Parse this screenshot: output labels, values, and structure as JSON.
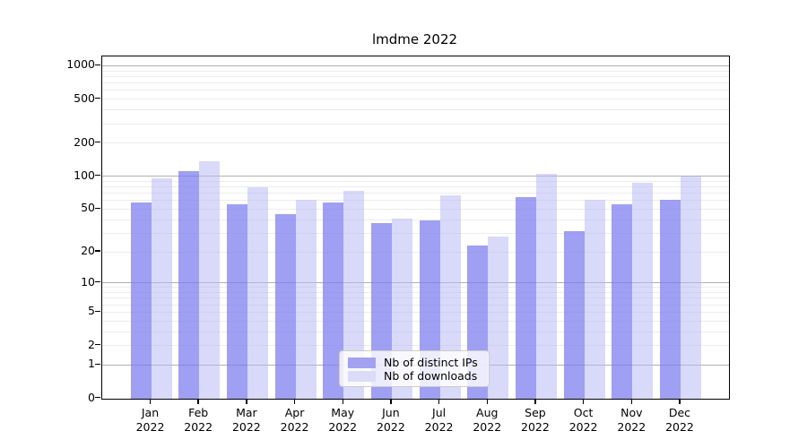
{
  "title": "lmdme 2022",
  "legend": {
    "items": [
      {
        "label": "Nb of distinct IPs",
        "color": "rgba(122,122,238,0.72)",
        "swatch": "#a2a2f3"
      },
      {
        "label": "Nb of downloads",
        "color": "rgba(182,182,246,0.52)",
        "swatch": "#dcdcf9"
      }
    ]
  },
  "axis": {
    "x_year": "2022",
    "y_tick_values": [
      0,
      1,
      2,
      5,
      10,
      20,
      50,
      100,
      200,
      500,
      1000
    ],
    "y_tick_labels": [
      "0",
      "1",
      "2",
      "5",
      "10",
      "20",
      "50",
      "100",
      "200",
      "500",
      "1000"
    ],
    "major_gridlines": [
      1,
      10,
      100,
      1000
    ],
    "minor_gridlines": [
      2,
      3,
      4,
      5,
      6,
      7,
      8,
      9,
      20,
      30,
      40,
      50,
      60,
      70,
      80,
      90,
      200,
      300,
      400,
      500,
      600,
      700,
      800,
      900
    ],
    "grid": "on",
    "legend_position": "lower center"
  },
  "chart_data": {
    "type": "bar",
    "title": "lmdme 2022",
    "scale": "log10(1+x)",
    "categories": [
      "Jan",
      "Feb",
      "Mar",
      "Apr",
      "May",
      "Jun",
      "Jul",
      "Aug",
      "Sep",
      "Oct",
      "Nov",
      "Dec"
    ],
    "x_year": "2022",
    "series": [
      {
        "name": "Nb of distinct IPs",
        "values": [
          58,
          112,
          55,
          45,
          57,
          37,
          39,
          23,
          65,
          31,
          55,
          61
        ]
      },
      {
        "name": "Nb of downloads",
        "values": [
          95,
          136,
          80,
          61,
          74,
          41,
          67,
          28,
          105,
          61,
          87,
          99
        ]
      }
    ],
    "xlabel": "",
    "ylabel": "",
    "ylim": [
      0,
      1216
    ]
  }
}
